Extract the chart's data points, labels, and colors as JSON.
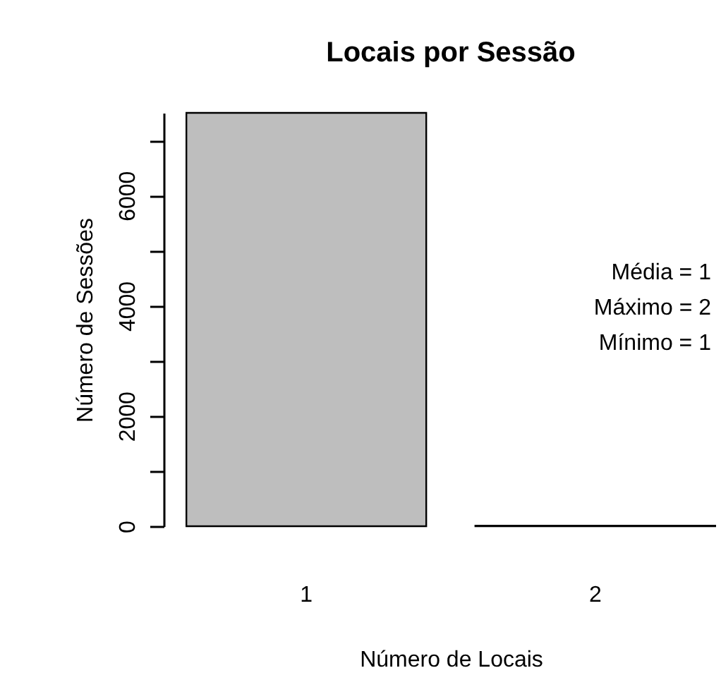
{
  "chart_data": {
    "type": "bar",
    "title": "Locais por Sessão",
    "xlabel": "Número de Locais",
    "ylabel": "Número de Sessões",
    "categories": [
      "1",
      "2"
    ],
    "values": [
      7500,
      10
    ],
    "color": "#bebebe",
    "ylim": [
      0,
      7500
    ],
    "yticks": [
      0,
      {
        "value": 1000,
        "label": null
      },
      2000,
      {
        "value": 3000,
        "label": null
      },
      4000,
      {
        "value": 5000,
        "label": null
      },
      6000,
      {
        "value": 7000,
        "label": null
      }
    ],
    "annotations": [
      "Média = 1",
      "Máximo = 2",
      "Mínimo = 1"
    ]
  }
}
